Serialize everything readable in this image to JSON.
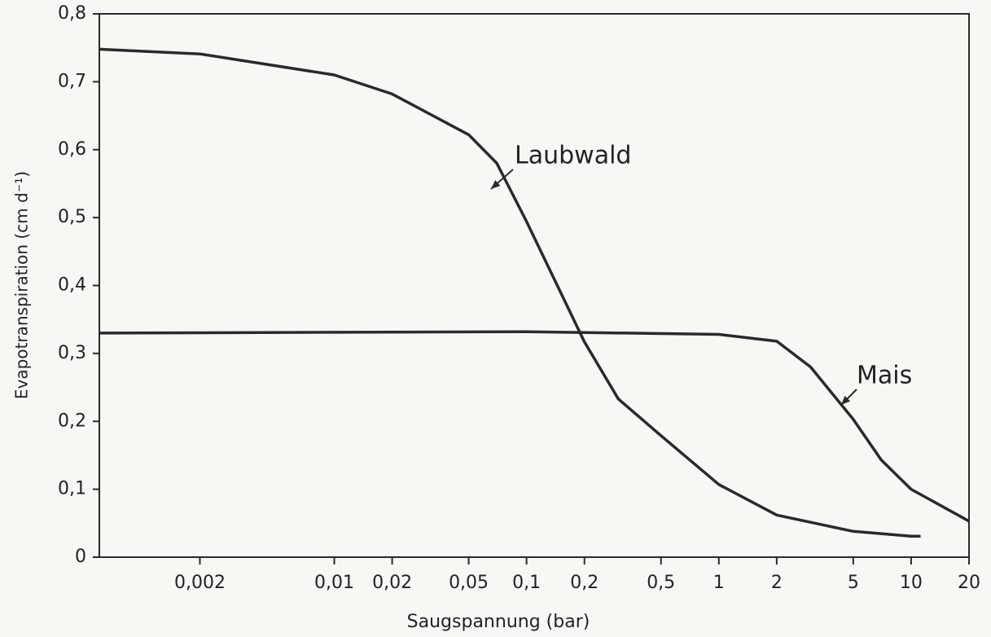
{
  "chart_data": {
    "type": "line",
    "xlabel": "Saugspannung (bar)",
    "ylabel": "Evapotranspiration (cm d⁻¹)",
    "xscale": "log",
    "xlim": [
      0.0006,
      20
    ],
    "ylim": [
      0,
      0.8
    ],
    "xticks": [
      {
        "value": 0.002,
        "label": "0,002"
      },
      {
        "value": 0.01,
        "label": "0,01"
      },
      {
        "value": 0.02,
        "label": "0,02"
      },
      {
        "value": 0.05,
        "label": "0,05"
      },
      {
        "value": 0.1,
        "label": "0,1"
      },
      {
        "value": 0.2,
        "label": "0,2"
      },
      {
        "value": 0.5,
        "label": "0,5"
      },
      1,
      2,
      5,
      10,
      20
    ],
    "yticks": [
      0,
      {
        "value": 0.1,
        "label": "0,1"
      },
      {
        "value": 0.2,
        "label": "0,2"
      },
      {
        "value": 0.3,
        "label": "0,3"
      },
      {
        "value": 0.4,
        "label": "0,4"
      },
      {
        "value": 0.5,
        "label": "0,5"
      },
      {
        "value": 0.6,
        "label": "0,6"
      },
      {
        "value": 0.7,
        "label": "0,7"
      },
      {
        "value": 0.8,
        "label": "0,8"
      }
    ],
    "series": [
      {
        "name": "Laubwald",
        "color": "#2a2a2a",
        "x": [
          0.0006,
          0.002,
          0.01,
          0.02,
          0.05,
          0.07,
          0.1,
          0.2,
          0.3,
          0.5,
          1,
          2,
          5,
          10,
          11.2
        ],
        "values": [
          0.748,
          0.741,
          0.71,
          0.682,
          0.622,
          0.58,
          0.494,
          0.317,
          0.233,
          0.179,
          0.107,
          0.062,
          0.038,
          0.031,
          0.031
        ]
      },
      {
        "name": "Mais",
        "color": "#2a2a2a",
        "x": [
          0.0006,
          0.1,
          1,
          2,
          3,
          5,
          7,
          10,
          20
        ],
        "values": [
          0.33,
          0.332,
          0.328,
          0.318,
          0.28,
          0.203,
          0.143,
          0.1,
          0.053
        ]
      }
    ]
  }
}
